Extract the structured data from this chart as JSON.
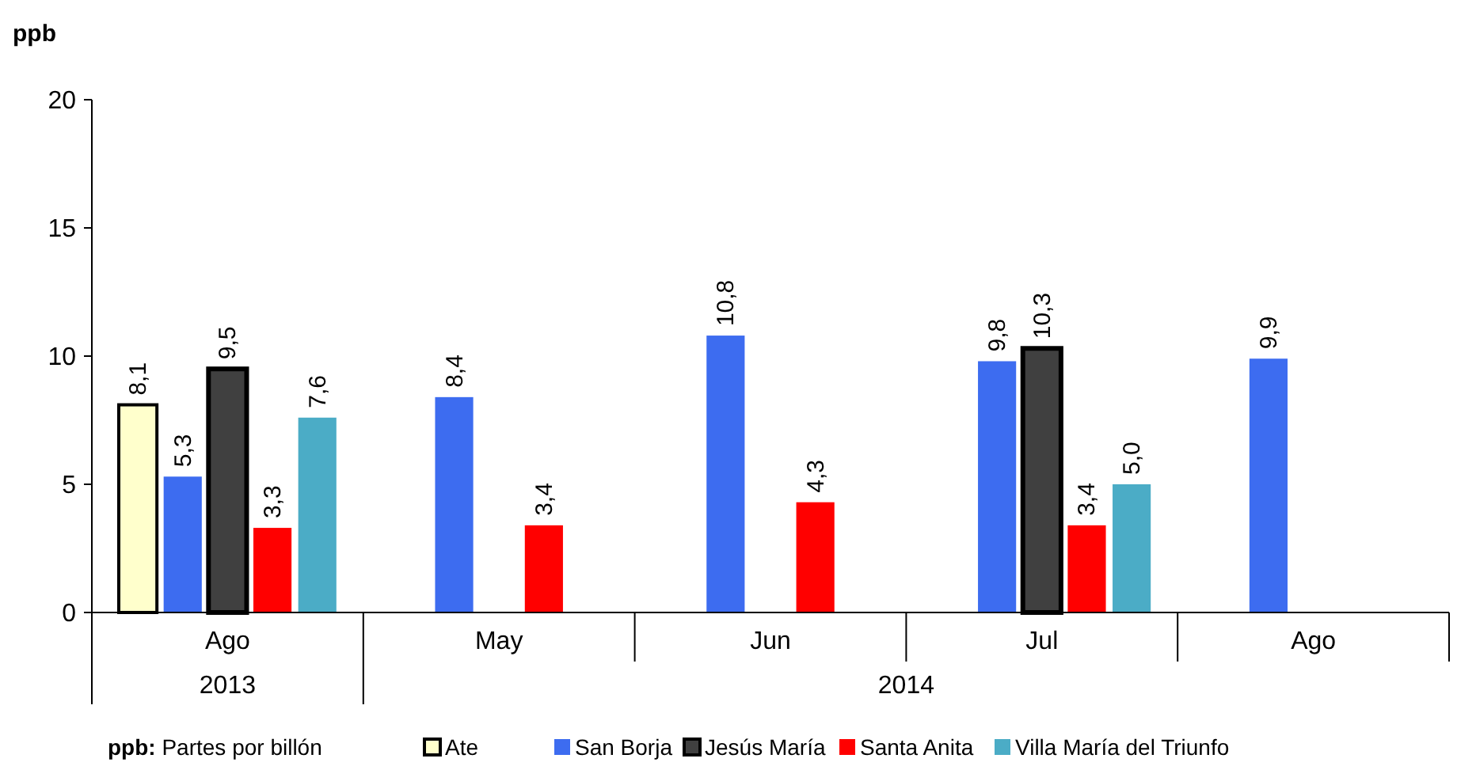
{
  "chart_data": {
    "type": "bar",
    "ylabel": "ppb",
    "categories": [
      "Ago",
      "May",
      "Jun",
      "Jul",
      "Ago"
    ],
    "series": [
      {
        "name": "Ate",
        "color": "#ffffcc",
        "values": [
          8.1,
          null,
          null,
          null,
          null
        ],
        "value_labels": [
          "8,1",
          null,
          null,
          null,
          null
        ]
      },
      {
        "name": "San Borja",
        "color": "#3d6cf0",
        "values": [
          5.3,
          8.4,
          10.8,
          9.8,
          9.9
        ],
        "value_labels": [
          "5,3",
          "8,4",
          "10,8",
          "9,8",
          "9,9"
        ]
      },
      {
        "name": "Jesús María",
        "color": "#404040",
        "values": [
          9.5,
          null,
          null,
          10.3,
          null
        ],
        "value_labels": [
          "9,5",
          null,
          null,
          "10,3",
          null
        ]
      },
      {
        "name": "Santa Anita",
        "color": "#ff0000",
        "values": [
          3.3,
          3.4,
          4.3,
          3.4,
          null
        ],
        "value_labels": [
          "3,3",
          "3,4",
          "4,3",
          "3,4",
          null
        ]
      },
      {
        "name": "Villa María del Triunfo",
        "color": "#4bacc6",
        "values": [
          7.6,
          null,
          null,
          5.0,
          null
        ],
        "value_labels": [
          "7,6",
          null,
          null,
          "5,0",
          null
        ]
      }
    ],
    "ylim": [
      0,
      20
    ],
    "yticks": [
      0,
      5,
      10,
      15,
      20
    ],
    "grid": false,
    "legend": "bottom",
    "annotations": [
      "2013",
      "2014",
      "ppb: Partes por billón"
    ]
  }
}
